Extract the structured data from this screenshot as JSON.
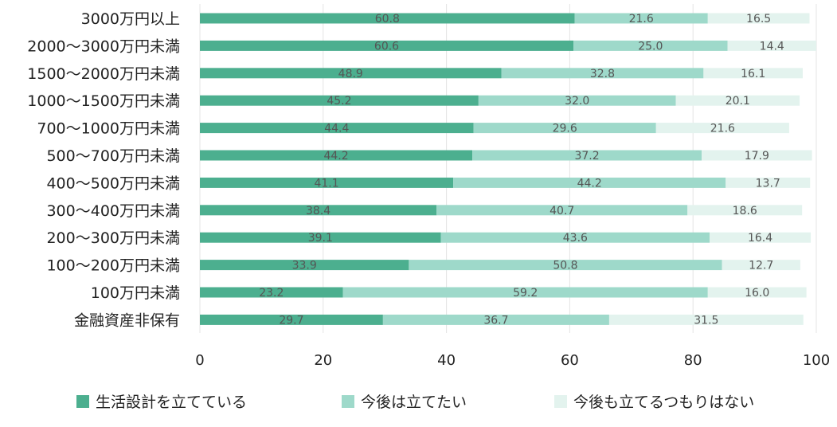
{
  "chart_data": {
    "type": "bar",
    "orientation": "horizontal",
    "stacked": true,
    "categories": [
      "3000万円以上",
      "2000〜3000万円未満",
      "1500〜2000万円未満",
      "1000〜1500万円未満",
      "700〜1000万円未満",
      "500〜700万円未満",
      "400〜500万円未満",
      "300〜400万円未満",
      "200〜300万円未満",
      "100〜200万円未満",
      "100万円未満",
      "金融資産非保有"
    ],
    "series": [
      {
        "name": "生活設計を立てている",
        "color": "#4caf8f",
        "values": [
          60.8,
          60.6,
          48.9,
          45.2,
          44.4,
          44.2,
          41.1,
          38.4,
          39.1,
          33.9,
          23.2,
          29.7
        ],
        "labels": [
          "60.8",
          "60.6",
          "48.9",
          "45.2",
          "44.4",
          "44.2",
          "41.1",
          "38.4",
          "39.1",
          "33.9",
          "23.2",
          "29.7"
        ]
      },
      {
        "name": "今後は立てたい",
        "color": "#9ed9ca",
        "values": [
          21.6,
          25.0,
          32.8,
          32.0,
          29.6,
          37.2,
          44.2,
          40.7,
          43.6,
          50.8,
          59.2,
          36.7
        ],
        "labels": [
          "21.6",
          "25.0",
          "32.8",
          "32.0",
          "29.6",
          "37.2",
          "44.2",
          "40.7",
          "43.6",
          "50.8",
          "59.2",
          "36.7"
        ]
      },
      {
        "name": "今後も立てるつもりはない",
        "color": "#e3f3ee",
        "values": [
          16.5,
          14.4,
          16.1,
          20.1,
          21.6,
          17.9,
          13.7,
          18.6,
          16.4,
          12.7,
          16.0,
          31.5
        ],
        "labels": [
          "16.5",
          "14.4",
          "16.1",
          "20.1",
          "21.6",
          "17.9",
          "13.7",
          "18.6",
          "16.4",
          "12.7",
          "16.0",
          "31.5"
        ]
      }
    ],
    "xlim": [
      0,
      100
    ],
    "xticks": [
      "0",
      "20",
      "40",
      "60",
      "80",
      "100"
    ],
    "grid": true,
    "legend_position": "bottom",
    "title": "",
    "xlabel": "",
    "ylabel": ""
  }
}
